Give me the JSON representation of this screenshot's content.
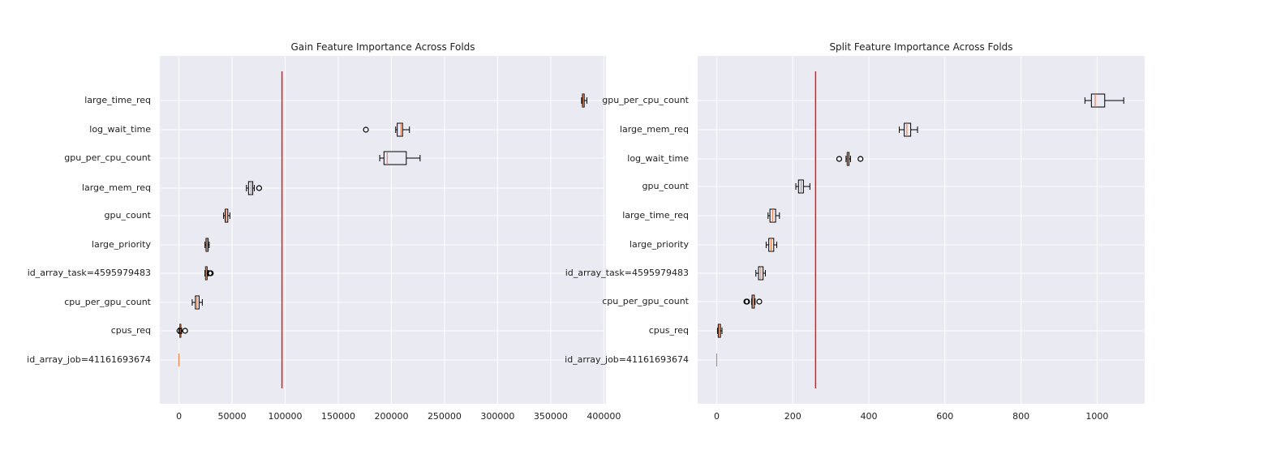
{
  "chart_data": [
    {
      "type": "boxplot",
      "orientation": "horizontal",
      "title": "Gain Feature Importance Across Folds",
      "xlim": [
        -18000,
        402000
      ],
      "x_ticks": [
        0,
        50000,
        100000,
        150000,
        200000,
        250000,
        300000,
        350000,
        400000
      ],
      "x_tick_labels": [
        "0",
        "50000",
        "100000",
        "150000",
        "200000",
        "250000",
        "300000",
        "350000",
        "400000"
      ],
      "threshold_line": 97000,
      "threshold_color": "#e41a1c",
      "grid": true,
      "features": [
        {
          "name": "large_time_req",
          "whislo": 379000,
          "q1": 379800,
          "med": 380500,
          "q3": 381500,
          "whishi": 384000,
          "fliers": []
        },
        {
          "name": "log_wait_time",
          "whislo": 204000,
          "q1": 205500,
          "med": 209000,
          "q3": 210500,
          "whishi": 217000,
          "fliers": [
            176000
          ]
        },
        {
          "name": "gpu_per_cpu_count",
          "whislo": 189000,
          "q1": 193000,
          "med": 196000,
          "q3": 214000,
          "whishi": 227000,
          "fliers": []
        },
        {
          "name": "large_mem_req",
          "whislo": 63500,
          "q1": 65500,
          "med": 68000,
          "q3": 69500,
          "whishi": 71000,
          "fliers": [
            75500
          ]
        },
        {
          "name": "gpu_count",
          "whislo": 42000,
          "q1": 43500,
          "med": 44500,
          "q3": 46000,
          "whishi": 48000,
          "fliers": []
        },
        {
          "name": "large_priority",
          "whislo": 24500,
          "q1": 25500,
          "med": 26500,
          "q3": 27500,
          "whishi": 28500,
          "fliers": []
        },
        {
          "name": "id_array_task=4595979483",
          "whislo": 24500,
          "q1": 25000,
          "med": 25500,
          "q3": 26500,
          "whishi": 27500,
          "fliers": [
            29000,
            30000
          ]
        },
        {
          "name": "cpu_per_gpu_count",
          "whislo": 12500,
          "q1": 15500,
          "med": 17000,
          "q3": 19000,
          "whishi": 22000,
          "fliers": []
        },
        {
          "name": "cpus_req",
          "whislo": 0,
          "q1": 800,
          "med": 1200,
          "q3": 1800,
          "whishi": 2500,
          "fliers": [
            500,
            5800
          ]
        },
        {
          "name": "id_array_job=41161693674",
          "whislo": 0,
          "q1": 0,
          "med": 0,
          "q3": 0,
          "whishi": 0,
          "fliers": []
        }
      ]
    },
    {
      "type": "boxplot",
      "orientation": "horizontal",
      "title": "Split Feature Importance Across Folds",
      "xlim": [
        -50,
        1125
      ],
      "x_ticks": [
        0,
        200,
        400,
        600,
        800,
        1000
      ],
      "x_tick_labels": [
        "0",
        "200",
        "400",
        "600",
        "800",
        "1000"
      ],
      "threshold_line": 260,
      "threshold_color": "#e41a1c",
      "grid": true,
      "features": [
        {
          "name": "gpu_per_cpu_count",
          "whislo": 968,
          "q1": 985,
          "med": 995,
          "q3": 1020,
          "whishi": 1070,
          "fliers": []
        },
        {
          "name": "large_mem_req",
          "whislo": 480,
          "q1": 493,
          "med": 500,
          "q3": 510,
          "whishi": 528,
          "fliers": []
        },
        {
          "name": "log_wait_time",
          "whislo": 340,
          "q1": 343,
          "med": 345,
          "q3": 348,
          "whishi": 352,
          "fliers": [
            322,
            378
          ]
        },
        {
          "name": "gpu_count",
          "whislo": 208,
          "q1": 215,
          "med": 222,
          "q3": 228,
          "whishi": 245,
          "fliers": []
        },
        {
          "name": "large_time_req",
          "whislo": 135,
          "q1": 140,
          "med": 147,
          "q3": 155,
          "whishi": 165,
          "fliers": []
        },
        {
          "name": "large_priority",
          "whislo": 130,
          "q1": 137,
          "med": 143,
          "q3": 150,
          "whishi": 158,
          "fliers": []
        },
        {
          "name": "id_array_task=4595979483",
          "whislo": 103,
          "q1": 110,
          "med": 116,
          "q3": 122,
          "whishi": 128,
          "fliers": []
        },
        {
          "name": "cpu_per_gpu_count",
          "whislo": 92,
          "q1": 93,
          "med": 95,
          "q3": 99,
          "whishi": 101,
          "fliers": [
            78,
            80,
            112
          ]
        },
        {
          "name": "cpus_req",
          "whislo": 2,
          "q1": 4,
          "med": 7,
          "q3": 10,
          "whishi": 14,
          "fliers": []
        },
        {
          "name": "id_array_job=41161693674",
          "whislo": 0,
          "q1": 0,
          "med": 0,
          "q3": 0,
          "whishi": 0,
          "fliers": []
        }
      ]
    }
  ]
}
